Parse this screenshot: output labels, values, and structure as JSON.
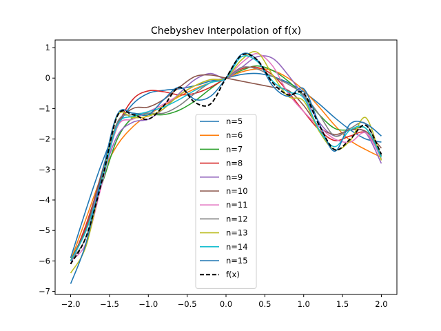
{
  "chart_data": {
    "type": "line",
    "title": "Chebyshev Interpolation of f(x)",
    "xlabel": "",
    "ylabel": "",
    "xlim": [
      -2.2,
      2.2
    ],
    "ylim": [
      -7.1,
      1.25
    ],
    "xticks": [
      -2.0,
      -1.5,
      -1.0,
      -0.5,
      0.0,
      0.5,
      1.0,
      1.5,
      2.0
    ],
    "xtick_labels": [
      "−2.0",
      "−1.5",
      "−1.0",
      "−0.5",
      "0.0",
      "0.5",
      "1.0",
      "1.5",
      "2.0"
    ],
    "yticks": [
      1,
      0,
      -1,
      -2,
      -3,
      -4,
      -5,
      -6,
      -7
    ],
    "ytick_labels": [
      "1",
      "0",
      "−1",
      "−2",
      "−3",
      "−4",
      "−5",
      "−6",
      "−7"
    ],
    "grid": false,
    "legend_position": "lower-center",
    "x": [
      -2.0,
      -1.8,
      -1.6,
      -1.4,
      -1.2,
      -1.0,
      -0.8,
      -0.6,
      -0.4,
      -0.2,
      0.0,
      0.2,
      0.4,
      0.6,
      0.8,
      1.0,
      1.2,
      1.4,
      1.6,
      1.8,
      2.0
    ],
    "series": [
      {
        "name": "n=5",
        "color": "#1f77b4",
        "dash": false,
        "values": [
          -5.9,
          -4.3,
          -2.8,
          -1.6,
          -0.85,
          -0.5,
          -0.4,
          -0.35,
          -0.25,
          -0.1,
          0.0,
          0.12,
          0.15,
          0.05,
          -0.15,
          -0.45,
          -0.85,
          -1.3,
          -1.7,
          -2.0,
          -2.1
        ]
      },
      {
        "name": "n=6",
        "color": "#ff7f0e",
        "dash": false,
        "values": [
          -6.0,
          -4.6,
          -3.2,
          -2.2,
          -1.6,
          -1.2,
          -0.9,
          -0.6,
          -0.35,
          -0.15,
          0.0,
          0.2,
          0.3,
          0.25,
          0.0,
          -0.4,
          -0.95,
          -1.55,
          -2.05,
          -2.35,
          -2.6
        ]
      },
      {
        "name": "n=7",
        "color": "#2ca02c",
        "dash": false,
        "values": [
          -6.0,
          -4.9,
          -3.5,
          -2.0,
          -1.3,
          -1.2,
          -1.2,
          -1.05,
          -0.75,
          -0.35,
          0.0,
          0.25,
          0.4,
          0.25,
          -0.1,
          -0.6,
          -1.2,
          -1.65,
          -1.7,
          -1.65,
          -2.55
        ]
      },
      {
        "name": "n=8",
        "color": "#d62728",
        "dash": false,
        "values": [
          -6.1,
          -4.8,
          -3.2,
          -1.6,
          -0.7,
          -0.42,
          -0.45,
          -0.55,
          -0.5,
          -0.3,
          0.0,
          0.3,
          0.35,
          0.1,
          -0.45,
          -1.1,
          -1.7,
          -2.05,
          -1.9,
          -1.8,
          -2.5
        ]
      },
      {
        "name": "n=9",
        "color": "#9467bd",
        "dash": false,
        "values": [
          -6.1,
          -4.9,
          -3.3,
          -1.9,
          -1.45,
          -1.35,
          -1.0,
          -0.5,
          -0.05,
          0.15,
          0.0,
          0.35,
          0.7,
          0.65,
          0.1,
          -0.6,
          -1.45,
          -1.9,
          -1.7,
          -1.8,
          -2.8
        ]
      },
      {
        "name": "n=10",
        "color": "#8c564b",
        "dash": false,
        "values": [
          -6.0,
          -4.9,
          -3.1,
          -1.5,
          -1.0,
          -0.95,
          -0.7,
          -0.3,
          0.05,
          0.1,
          0.0,
          -0.1,
          -0.2,
          -0.3,
          -0.4,
          -0.9,
          -1.6,
          -1.85,
          -1.7,
          -1.75,
          -2.3
        ]
      },
      {
        "name": "n=11",
        "color": "#e377c2",
        "dash": false,
        "values": [
          -6.0,
          -5.4,
          -3.5,
          -1.6,
          -1.35,
          -1.1,
          -0.85,
          -0.55,
          -0.25,
          -0.05,
          0.0,
          0.5,
          0.8,
          0.4,
          -0.5,
          -1.1,
          -1.6,
          -2.0,
          -2.1,
          -1.8,
          -2.65
        ]
      },
      {
        "name": "n=12",
        "color": "#7f7f7f",
        "dash": false,
        "values": [
          -6.0,
          -5.2,
          -3.3,
          -1.45,
          -1.2,
          -1.15,
          -1.15,
          -0.9,
          -0.5,
          -0.15,
          0.0,
          0.35,
          0.3,
          0.05,
          -0.2,
          -0.55,
          -1.2,
          -1.9,
          -1.65,
          -1.5,
          -2.55
        ]
      },
      {
        "name": "n=13",
        "color": "#bcbd22",
        "dash": false,
        "values": [
          -6.4,
          -5.5,
          -3.3,
          -1.25,
          -1.3,
          -1.25,
          -1.0,
          -0.55,
          -0.25,
          -0.05,
          0.0,
          0.6,
          0.85,
          0.1,
          -0.6,
          -0.75,
          -1.75,
          -2.35,
          -2.05,
          -1.3,
          -2.7
        ]
      },
      {
        "name": "n=14",
        "color": "#17becf",
        "dash": false,
        "values": [
          -6.0,
          -5.0,
          -3.4,
          -1.55,
          -1.25,
          -1.1,
          -0.95,
          -0.7,
          -0.4,
          -0.15,
          0.0,
          0.7,
          0.55,
          -0.1,
          -0.45,
          -0.65,
          -1.7,
          -2.25,
          -1.7,
          -1.65,
          -2.6
        ]
      },
      {
        "name": "n=15",
        "color": "#1f77b4",
        "dash": false,
        "values": [
          -6.75,
          -5.4,
          -3.2,
          -1.2,
          -1.15,
          -1.2,
          -0.7,
          -0.3,
          -0.7,
          -0.6,
          0.0,
          0.78,
          0.6,
          -0.25,
          -0.6,
          -0.35,
          -1.5,
          -2.4,
          -1.5,
          -1.5,
          -1.9
        ]
      },
      {
        "name": "f(x)",
        "color": "#000000",
        "dash": true,
        "values": [
          -6.1,
          -5.2,
          -3.4,
          -1.25,
          -1.2,
          -1.35,
          -0.9,
          -0.3,
          -0.8,
          -0.85,
          0.0,
          0.75,
          0.6,
          -0.15,
          -0.55,
          -0.5,
          -1.55,
          -2.35,
          -2.0,
          -1.55,
          -2.5
        ]
      }
    ]
  }
}
